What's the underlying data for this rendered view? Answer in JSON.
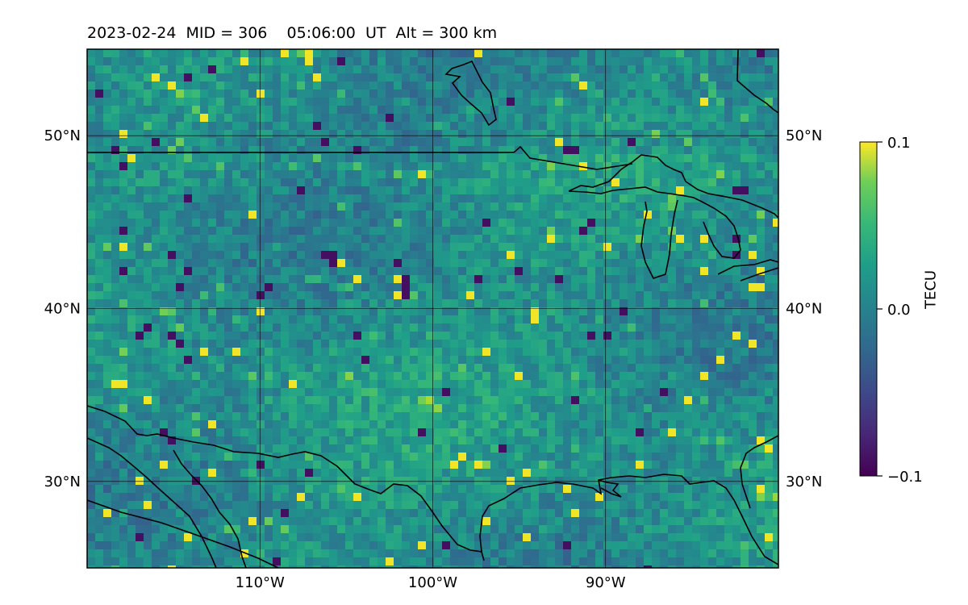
{
  "title": "2023-02-24  MID = 306    05:06:00  UT  Alt = 300 km",
  "map": {
    "lon_range": [
      -120,
      -80
    ],
    "lat_range": [
      25,
      55
    ],
    "lat_ticks": [
      {
        "value": 50,
        "label": "50°N"
      },
      {
        "value": 40,
        "label": "40°N"
      },
      {
        "value": 30,
        "label": "30°N"
      }
    ],
    "lon_ticks": [
      {
        "value": -110,
        "label": "110°W"
      },
      {
        "value": -100,
        "label": "100°W"
      },
      {
        "value": -90,
        "label": "90°W"
      }
    ],
    "grid": true,
    "coastlines": true,
    "colormap": "viridis",
    "colors": {
      "low": "#440154",
      "mid": "#21918c",
      "high": "#fde725"
    }
  },
  "colorbar": {
    "label": "TECU",
    "min": -0.1,
    "max": 0.1,
    "ticks": [
      {
        "value": 0.1,
        "label": "0.1"
      },
      {
        "value": 0.0,
        "label": "0.0"
      },
      {
        "value": -0.1,
        "label": "−0.1"
      }
    ]
  }
}
